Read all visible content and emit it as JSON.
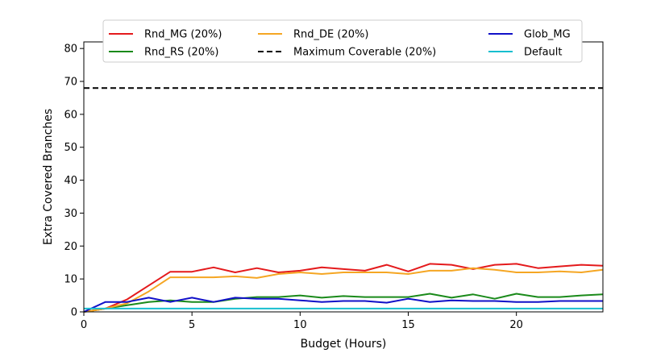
{
  "chart_data": {
    "type": "line",
    "xlabel": "Budget (Hours)",
    "ylabel": "Extra Covered Branches",
    "xlim": [
      0,
      24
    ],
    "ylim": [
      0,
      82
    ],
    "xticks": [
      0,
      5,
      10,
      15,
      20
    ],
    "yticks": [
      0,
      10,
      20,
      30,
      40,
      50,
      60,
      70,
      80
    ],
    "grid": false,
    "legend_position": "top",
    "x": [
      0,
      1,
      2,
      3,
      4,
      5,
      6,
      7,
      8,
      9,
      10,
      11,
      12,
      13,
      14,
      15,
      16,
      17,
      18,
      19,
      20,
      21,
      22,
      23,
      24
    ],
    "series": [
      {
        "name": "Rnd_MG (20%)",
        "color": "#e41a1c",
        "style": "solid",
        "values": [
          0,
          1,
          3.8,
          8,
          12.2,
          12.2,
          13.5,
          12,
          13.3,
          12,
          12.5,
          13.5,
          13,
          12.5,
          14.3,
          12.3,
          14.6,
          14.3,
          13,
          14.3,
          14.6,
          13.3,
          13.8,
          14.3,
          14
        ]
      },
      {
        "name": "Rnd_RS (20%)",
        "color": "#1a8a1a",
        "style": "solid",
        "values": [
          0,
          1,
          2,
          3,
          3.5,
          3,
          3,
          4,
          4.5,
          4.5,
          5,
          4.3,
          4.8,
          4.5,
          4.5,
          4.5,
          5.5,
          4.3,
          5.3,
          4,
          5.5,
          4.5,
          4.5,
          5,
          5.3
        ]
      },
      {
        "name": "Rnd_DE (20%)",
        "color": "#f5a623",
        "style": "solid",
        "values": [
          0,
          1,
          2.6,
          6.2,
          10.5,
          10.5,
          10.5,
          10.8,
          10.3,
          11.5,
          12,
          11.5,
          12,
          12,
          12,
          11.5,
          12.5,
          12.5,
          13.3,
          12.8,
          12,
          12,
          12.3,
          12,
          12.8
        ]
      },
      {
        "name": "Maximum Coverable (20%)",
        "color": "#000000",
        "style": "dashed",
        "values": [
          68,
          68,
          68,
          68,
          68,
          68,
          68,
          68,
          68,
          68,
          68,
          68,
          68,
          68,
          68,
          68,
          68,
          68,
          68,
          68,
          68,
          68,
          68,
          68,
          68
        ]
      },
      {
        "name": "Glob_MG",
        "color": "#1010c8",
        "style": "solid",
        "values": [
          0,
          3,
          3,
          4.3,
          3,
          4.3,
          3,
          4.3,
          4,
          4,
          3.5,
          3,
          3.3,
          3.3,
          2.8,
          4,
          3,
          3.5,
          3.3,
          3.3,
          3,
          3,
          3.3,
          3.3,
          3.3
        ]
      },
      {
        "name": "Default",
        "color": "#17becf",
        "style": "solid",
        "values": [
          1,
          1,
          1,
          1,
          1,
          1,
          1,
          1,
          1,
          1,
          1,
          1,
          1,
          1,
          1,
          1,
          1,
          1,
          1,
          1,
          1,
          1,
          1,
          1,
          1
        ]
      }
    ]
  }
}
